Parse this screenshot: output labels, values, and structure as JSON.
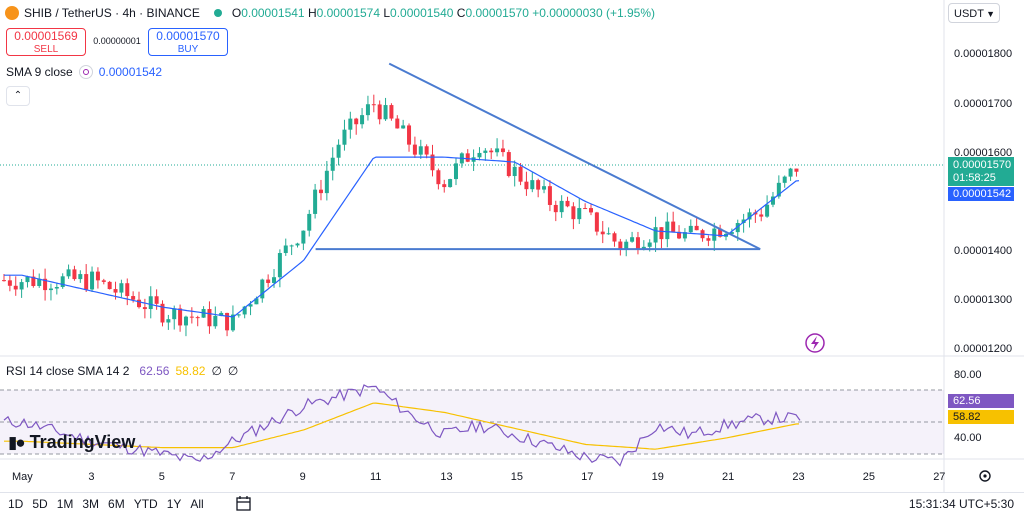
{
  "header": {
    "title": "SHIB / TetherUS · 4h · BINANCE",
    "ohlc": {
      "o_label": "O",
      "o": "0.00001541",
      "h_label": "H",
      "h": "0.00001574",
      "l_label": "L",
      "l": "0.00001540",
      "c_label": "C",
      "c": "0.00001570",
      "change": "+0.00000030 (+1.95%)"
    }
  },
  "trade": {
    "sell_price": "0.00001569",
    "sell_label": "SELL",
    "spread": "0.00000001",
    "buy_price": "0.00001570",
    "buy_label": "BUY"
  },
  "sma": {
    "label": "SMA 9 close",
    "value": "0.00001542"
  },
  "currency": "USDT",
  "price_axis": {
    "ticks": [
      "0.00001800",
      "0.00001700",
      "0.00001600",
      "0.00001400",
      "0.00001300",
      "0.00001200"
    ],
    "current_price": "0.00001570",
    "countdown": "01:58:25",
    "sma_value": "0.00001542"
  },
  "rsi": {
    "label": "RSI 14 close SMA 14 2",
    "value": "62.56",
    "sma_value": "58.82",
    "extra1": "∅",
    "extra2": "∅",
    "ticks": [
      "80.00",
      "40.00"
    ]
  },
  "time_axis": [
    "May",
    "3",
    "5",
    "7",
    "9",
    "11",
    "13",
    "15",
    "17",
    "19",
    "21",
    "23",
    "25",
    "27"
  ],
  "ranges": [
    "1D",
    "5D",
    "1M",
    "3M",
    "6M",
    "YTD",
    "1Y",
    "All"
  ],
  "clock": "15:31:34 UTC+5:30",
  "branding": "TradingView",
  "colors": {
    "up": "#22ab94",
    "down": "#f23645",
    "sma": "#2962ff",
    "rsi": "#7e57c2",
    "rsi_sma": "#f7c100",
    "trendline": "#4a7bd0"
  },
  "chart_data": [
    {
      "type": "candlestick",
      "series": [
        {
          "name": "SHIB / TetherUS · 4h · BINANCE"
        },
        {
          "name": "SMA 9 close"
        }
      ],
      "x_range": [
        "May",
        "27"
      ],
      "ylim": [
        1.2e-05,
        1.85e-05
      ],
      "price_path": [
        [
          "May",
          1.34e-05
        ],
        [
          "3",
          1.34e-05
        ],
        [
          "5",
          1.275e-05
        ],
        [
          "7",
          1.255e-05
        ],
        [
          "9",
          1.45e-05
        ],
        [
          "10",
          1.62e-05
        ],
        [
          "11",
          1.7e-05
        ],
        [
          "12",
          1.62e-05
        ],
        [
          "13",
          1.54e-05
        ],
        [
          "14",
          1.62e-05
        ],
        [
          "15",
          1.56e-05
        ],
        [
          "16",
          1.5e-05
        ],
        [
          "17",
          1.47e-05
        ],
        [
          "18",
          1.41e-05
        ],
        [
          "19",
          1.44e-05
        ],
        [
          "20",
          1.43e-05
        ],
        [
          "21",
          1.45e-05
        ],
        [
          "22",
          1.48e-05
        ],
        [
          "23",
          1.57e-05
        ]
      ],
      "sma_path": [
        [
          "May",
          1.35e-05
        ],
        [
          "5",
          1.285e-05
        ],
        [
          "7",
          1.265e-05
        ],
        [
          "9",
          1.38e-05
        ],
        [
          "11",
          1.59e-05
        ],
        [
          "13",
          1.59e-05
        ],
        [
          "15",
          1.58e-05
        ],
        [
          "17",
          1.5e-05
        ],
        [
          "19",
          1.44e-05
        ],
        [
          "21",
          1.43e-05
        ],
        [
          "23",
          1.542e-05
        ]
      ],
      "trendline_descending": [
        [
          "12",
          1.78e-05
        ],
        [
          "22",
          1.403e-05
        ]
      ],
      "trendline_support": [
        [
          "9",
          1.403e-05
        ],
        [
          "22",
          1.403e-05
        ]
      ]
    },
    {
      "type": "line",
      "series": [
        {
          "name": "RSI 14 close"
        },
        {
          "name": "SMA 14"
        }
      ],
      "ylim": [
        25,
        90
      ],
      "rsi_path": [
        [
          "May",
          60
        ],
        [
          "3",
          48
        ],
        [
          "5",
          40
        ],
        [
          "6",
          35
        ],
        [
          "7",
          48
        ],
        [
          "9",
          70
        ],
        [
          "11",
          82
        ],
        [
          "12",
          65
        ],
        [
          "13",
          52
        ],
        [
          "14",
          58
        ],
        [
          "15",
          52
        ],
        [
          "16",
          45
        ],
        [
          "17",
          38
        ],
        [
          "18",
          35
        ],
        [
          "19",
          58
        ],
        [
          "20",
          52
        ],
        [
          "21",
          58
        ],
        [
          "22",
          62
        ],
        [
          "23",
          62.56
        ]
      ],
      "sma_path": [
        [
          "May",
          48
        ],
        [
          "5",
          44
        ],
        [
          "7",
          44
        ],
        [
          "9",
          55
        ],
        [
          "11",
          72
        ],
        [
          "13",
          66
        ],
        [
          "15",
          56
        ],
        [
          "17",
          46
        ],
        [
          "19",
          43
        ],
        [
          "21",
          50
        ],
        [
          "23",
          58.82
        ]
      ]
    }
  ]
}
